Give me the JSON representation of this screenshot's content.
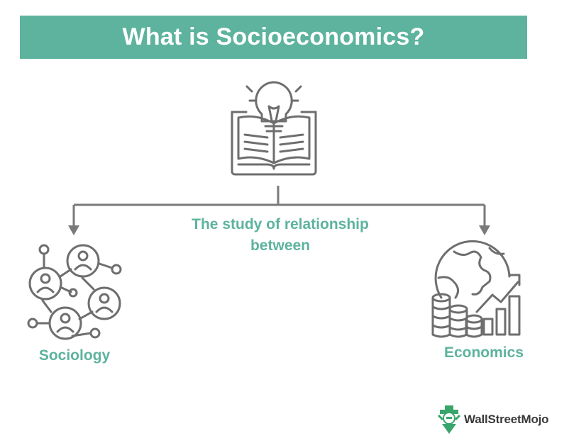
{
  "title": "What is Socioeconomics?",
  "center": {
    "line1": "The study of relationship",
    "line2": "between"
  },
  "left_node": {
    "label": "Sociology",
    "icon": "social-network-icon"
  },
  "right_node": {
    "label": "Economics",
    "icon": "globe-growth-chart-icon"
  },
  "top_icon": "lightbulb-book-icon",
  "brand": {
    "name": "WallStreetMojo",
    "icon": "wallstreetmojo-logo-icon"
  },
  "colors": {
    "accent": "#5db39d",
    "icon_stroke": "#6e6e6e",
    "connector": "#7a7a7a",
    "brand_green": "#3aa56b"
  }
}
